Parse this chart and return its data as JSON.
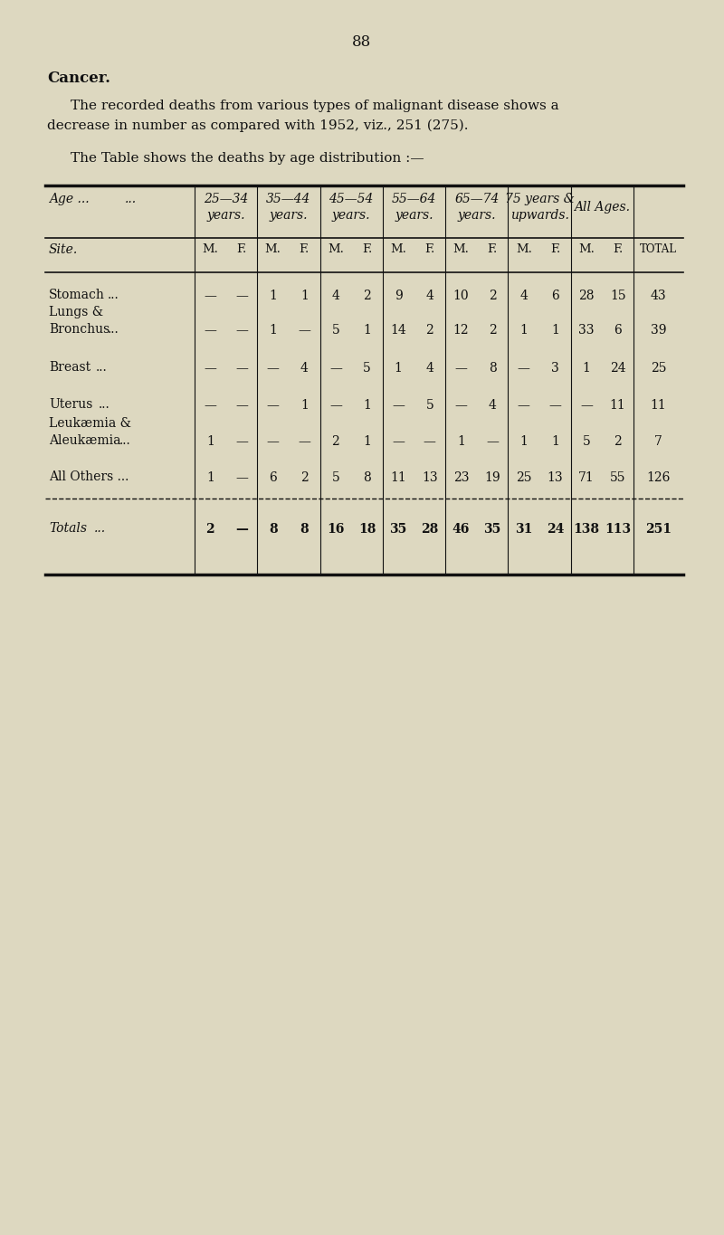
{
  "page_number": "88",
  "section_title": "Cancer.",
  "line1": "The recorded deaths from various types of malignant disease shows a",
  "line2": "decrease in number as compared with 1952, viz., 251 (275).",
  "para2": "The Table shows the deaths by age distribution :—",
  "bg_color": "#ddd8c0",
  "text_color": "#111111",
  "age_labels_1": [
    "25—34",
    "35—44",
    "45—54",
    "55—64",
    "65—74",
    "75 years &"
  ],
  "age_labels_2": [
    "years.",
    "years.",
    "years.",
    "years.",
    "years.",
    "upwards."
  ],
  "rows": [
    {
      "site1": "Stomach",
      "site2": "...",
      "site3": "",
      "vals": [
        "—",
        "—",
        "1",
        "1",
        "4",
        "2",
        "9",
        "4",
        "10",
        "2",
        "4",
        "6",
        "28",
        "15",
        "43"
      ]
    },
    {
      "site1": "Lungs &",
      "site2": "Bronchus",
      "site3": "...",
      "vals": [
        "—",
        "—",
        "1",
        "—",
        "5",
        "1",
        "14",
        "2",
        "12",
        "2",
        "1",
        "1",
        "33",
        "6",
        "39"
      ]
    },
    {
      "site1": "Breast",
      "site2": "...",
      "site3": "",
      "vals": [
        "—",
        "—",
        "—",
        "4",
        "—",
        "5",
        "1",
        "4",
        "—",
        "8",
        "—",
        "3",
        "1",
        "24",
        "25"
      ]
    },
    {
      "site1": "Uterus",
      "site2": "...",
      "site3": "",
      "vals": [
        "—",
        "—",
        "—",
        "1",
        "—",
        "1",
        "—",
        "5",
        "—",
        "4",
        "—",
        "—",
        "—",
        "11",
        "11"
      ]
    },
    {
      "site1": "Leukæmia &",
      "site2": "Aleukæmia",
      "site3": "...",
      "vals": [
        "1",
        "—",
        "—",
        "—",
        "2",
        "1",
        "—",
        "—",
        "1",
        "—",
        "1",
        "1",
        "5",
        "2",
        "7"
      ]
    },
    {
      "site1": "All Others ...",
      "site2": "",
      "site3": "",
      "vals": [
        "1",
        "—",
        "6",
        "2",
        "5",
        "8",
        "11",
        "13",
        "23",
        "19",
        "25",
        "13",
        "71",
        "55",
        "126"
      ]
    },
    {
      "site1": "Totals",
      "site2": "...",
      "site3": "",
      "vals": [
        "2",
        "—",
        "8",
        "8",
        "16",
        "18",
        "35",
        "28",
        "46",
        "35",
        "31",
        "24",
        "138",
        "113",
        "251"
      ],
      "is_total": true
    }
  ]
}
